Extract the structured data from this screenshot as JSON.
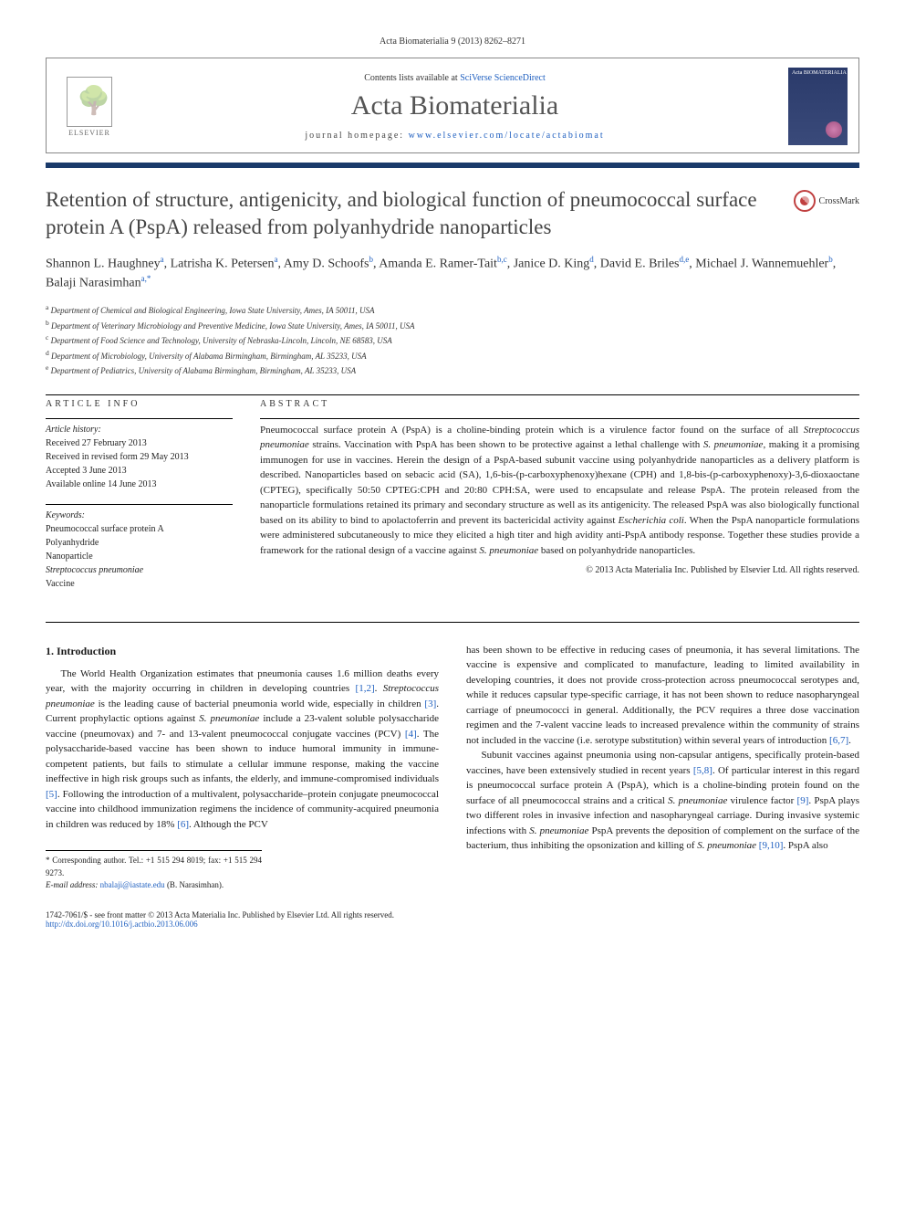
{
  "header": {
    "citation": "Acta Biomaterialia 9 (2013) 8262–8271",
    "contents_prefix": "Contents lists available at ",
    "contents_link": "SciVerse ScienceDirect",
    "journal": "Acta Biomaterialia",
    "homepage_prefix": "journal homepage: ",
    "homepage_url": "www.elsevier.com/locate/actabiomat",
    "elsevier": "ELSEVIER",
    "cover_label": "Acta BIOMATERIALIA",
    "crossmark": "CrossMark"
  },
  "article": {
    "title": "Retention of structure, antigenicity, and biological function of pneumococcal surface protein A (PspA) released from polyanhydride nanoparticles",
    "authors_html": "Shannon L. Haughney<sup>a</sup>, Latrisha K. Petersen<sup>a</sup>, Amy D. Schoofs<sup>b</sup>, Amanda E. Ramer-Tait<sup>b,c</sup>, Janice D. King<sup>d</sup>, David E. Briles<sup>d,e</sup>, Michael J. Wannemuehler<sup>b</sup>, Balaji Narasimhan<sup>a,*</sup>",
    "affiliations": [
      {
        "sup": "a",
        "text": "Department of Chemical and Biological Engineering, Iowa State University, Ames, IA 50011, USA"
      },
      {
        "sup": "b",
        "text": "Department of Veterinary Microbiology and Preventive Medicine, Iowa State University, Ames, IA 50011, USA"
      },
      {
        "sup": "c",
        "text": "Department of Food Science and Technology, University of Nebraska-Lincoln, Lincoln, NE 68583, USA"
      },
      {
        "sup": "d",
        "text": "Department of Microbiology, University of Alabama Birmingham, Birmingham, AL 35233, USA"
      },
      {
        "sup": "e",
        "text": "Department of Pediatrics, University of Alabama Birmingham, Birmingham, AL 35233, USA"
      }
    ]
  },
  "info": {
    "label": "ARTICLE INFO",
    "history_label": "Article history:",
    "history": [
      "Received 27 February 2013",
      "Received in revised form 29 May 2013",
      "Accepted 3 June 2013",
      "Available online 14 June 2013"
    ],
    "keywords_label": "Keywords:",
    "keywords": [
      "Pneumococcal surface protein A",
      "Polyanhydride",
      "Nanoparticle",
      "Streptococcus pneumoniae",
      "Vaccine"
    ]
  },
  "abstract": {
    "label": "ABSTRACT",
    "text_html": "Pneumococcal surface protein A (PspA) is a choline-binding protein which is a virulence factor found on the surface of all <em>Streptococcus pneumoniae</em> strains. Vaccination with PspA has been shown to be protective against a lethal challenge with <em>S. pneumoniae</em>, making it a promising immunogen for use in vaccines. Herein the design of a PspA-based subunit vaccine using polyanhydride nanoparticles as a delivery platform is described. Nanoparticles based on sebacic acid (SA), 1,6-bis-(p-carboxyphenoxy)hexane (CPH) and 1,8-bis-(p-carboxyphenoxy)-3,6-dioxaoctane (CPTEG), specifically 50:50 CPTEG:CPH and 20:80 CPH:SA, were used to encapsulate and release PspA. The protein released from the nanoparticle formulations retained its primary and secondary structure as well as its antigenicity. The released PspA was also biologically functional based on its ability to bind to apolactoferrin and prevent its bactericidal activity against <em>Escherichia coli</em>. When the PspA nanoparticle formulations were administered subcutaneously to mice they elicited a high titer and high avidity anti-PspA antibody response. Together these studies provide a framework for the rational design of a vaccine against <em>S. pneumoniae</em> based on polyanhydride nanoparticles.",
    "copyright": "© 2013 Acta Materialia Inc. Published by Elsevier Ltd. All rights reserved."
  },
  "body": {
    "heading": "1. Introduction",
    "col1_html": "The World Health Organization estimates that pneumonia causes 1.6 million deaths every year, with the majority occurring in children in developing countries <span class=\"ref-link\">[1,2]</span>. <em>Streptococcus pneumoniae</em> is the leading cause of bacterial pneumonia world wide, especially in children <span class=\"ref-link\">[3]</span>. Current prophylactic options against <em>S. pneumoniae</em> include a 23-valent soluble polysaccharide vaccine (pneumovax) and 7- and 13-valent pneumococcal conjugate vaccines (PCV) <span class=\"ref-link\">[4]</span>. The polysaccharide-based vaccine has been shown to induce humoral immunity in immune-competent patients, but fails to stimulate a cellular immune response, making the vaccine ineffective in high risk groups such as infants, the elderly, and immune-compromised individuals <span class=\"ref-link\">[5]</span>. Following the introduction of a multivalent, polysaccharide–protein conjugate pneumococcal vaccine into childhood immunization regimens the incidence of community-acquired pneumonia in children was reduced by 18% <span class=\"ref-link\">[6]</span>. Although the PCV",
    "col2_p1_html": "has been shown to be effective in reducing cases of pneumonia, it has several limitations. The vaccine is expensive and complicated to manufacture, leading to limited availability in developing countries, it does not provide cross-protection across pneumococcal serotypes and, while it reduces capsular type-specific carriage, it has not been shown to reduce nasopharyngeal carriage of pneumococci in general. Additionally, the PCV requires a three dose vaccination regimen and the 7-valent vaccine leads to increased prevalence within the community of strains not included in the vaccine (i.e. serotype substitution) within several years of introduction <span class=\"ref-link\">[6,7]</span>.",
    "col2_p2_html": "Subunit vaccines against pneumonia using non-capsular antigens, specifically protein-based vaccines, have been extensively studied in recent years <span class=\"ref-link\">[5,8]</span>. Of particular interest in this regard is pneumococcal surface protein A (PspA), which is a choline-binding protein found on the surface of all pneumococcal strains and a critical <em>S. pneumoniae</em> virulence factor <span class=\"ref-link\">[9]</span>. PspA plays two different roles in invasive infection and nasopharyngeal carriage. During invasive systemic infections with <em>S. pneumoniae</em> PspA prevents the deposition of complement on the surface of the bacterium, thus inhibiting the opsonization and killing of <em>S. pneumoniae</em> <span class=\"ref-link\">[9,10]</span>. PspA also"
  },
  "footnote": {
    "corr": "* Corresponding author. Tel.: +1 515 294 8019; fax: +1 515 294 9273.",
    "email_label": "E-mail address:",
    "email": "nbalaji@iastate.edu",
    "email_suffix": "(B. Narasimhan)."
  },
  "footer": {
    "line1": "1742-7061/$ - see front matter © 2013 Acta Materialia Inc. Published by Elsevier Ltd. All rights reserved.",
    "doi": "http://dx.doi.org/10.1016/j.actbio.2013.06.006"
  },
  "colors": {
    "rule": "#1a3a6a",
    "link": "#2060c0"
  }
}
